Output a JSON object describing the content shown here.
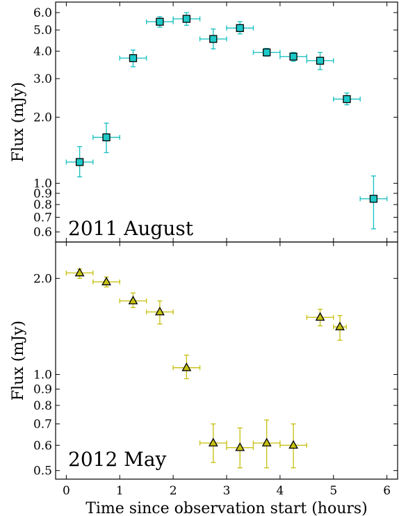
{
  "chart_data": [
    {
      "type": "scatter",
      "panel_label": "2011 August",
      "xlabel": "",
      "ylabel": "Flux (mJy)",
      "xlim": [
        -0.2,
        6.2
      ],
      "ylim": [
        0.54,
        6.7
      ],
      "yscale": "log",
      "grid": false,
      "marker": "square",
      "color": "#1ec8c8",
      "errorbar_color": "#20c2c2",
      "x_ticks": [
        0,
        1,
        2,
        3,
        4,
        5,
        6
      ],
      "y_ticks": [
        {
          "value": 0.6,
          "label": "0.6"
        },
        {
          "value": 0.7,
          "label": "0.7"
        },
        {
          "value": 0.8,
          "label": "0.8"
        },
        {
          "value": 0.9,
          "label": "0.9"
        },
        {
          "value": 1.0,
          "label": "1.0"
        },
        {
          "value": 2.0,
          "label": "2.0"
        },
        {
          "value": 3.0,
          "label": "3.0"
        },
        {
          "value": 4.0,
          "label": "4.0"
        },
        {
          "value": 5.0,
          "label": "5.0"
        },
        {
          "value": 6.0,
          "label": "6.0"
        }
      ],
      "points": [
        {
          "x": 0.25,
          "xerr": 0.25,
          "y": 1.25,
          "ylo": 1.07,
          "yhi": 1.47
        },
        {
          "x": 0.75,
          "xerr": 0.25,
          "y": 1.62,
          "ylo": 1.38,
          "yhi": 1.88
        },
        {
          "x": 1.25,
          "xerr": 0.25,
          "y": 3.72,
          "ylo": 3.4,
          "yhi": 4.05
        },
        {
          "x": 1.75,
          "xerr": 0.25,
          "y": 5.45,
          "ylo": 5.15,
          "yhi": 5.75
        },
        {
          "x": 2.25,
          "xerr": 0.25,
          "y": 5.62,
          "ylo": 5.25,
          "yhi": 6.0
        },
        {
          "x": 2.75,
          "xerr": 0.25,
          "y": 4.55,
          "ylo": 4.1,
          "yhi": 5.05
        },
        {
          "x": 3.25,
          "xerr": 0.25,
          "y": 5.1,
          "ylo": 4.8,
          "yhi": 5.45
        },
        {
          "x": 3.75,
          "xerr": 0.25,
          "y": 3.95,
          "ylo": 3.8,
          "yhi": 4.12
        },
        {
          "x": 4.25,
          "xerr": 0.25,
          "y": 3.78,
          "ylo": 3.6,
          "yhi": 3.95
        },
        {
          "x": 4.75,
          "xerr": 0.25,
          "y": 3.62,
          "ylo": 3.3,
          "yhi": 3.95
        },
        {
          "x": 5.25,
          "xerr": 0.25,
          "y": 2.42,
          "ylo": 2.28,
          "yhi": 2.58
        },
        {
          "x": 5.75,
          "xerr": 0.25,
          "y": 0.85,
          "ylo": 0.62,
          "yhi": 1.08
        }
      ]
    },
    {
      "type": "scatter",
      "panel_label": "2012 May",
      "xlabel": "Time since observation start (hours)",
      "ylabel": "Flux (mJy)",
      "xlim": [
        -0.2,
        6.2
      ],
      "ylim": [
        0.47,
        2.6
      ],
      "yscale": "log",
      "grid": false,
      "marker": "triangle",
      "color": "#c7c214",
      "errorbar_color": "#c9c31a",
      "x_ticks": [
        0,
        1,
        2,
        3,
        4,
        5,
        6
      ],
      "y_ticks": [
        {
          "value": 0.5,
          "label": "0.5"
        },
        {
          "value": 0.6,
          "label": "0.6"
        },
        {
          "value": 0.7,
          "label": "0.7"
        },
        {
          "value": 0.8,
          "label": "0.8"
        },
        {
          "value": 0.9,
          "label": "0.9"
        },
        {
          "value": 1.0,
          "label": "1.0"
        },
        {
          "value": 2.0,
          "label": "2.0"
        }
      ],
      "points": [
        {
          "x": 0.25,
          "xerr": 0.25,
          "y": 2.08,
          "ylo": 2.0,
          "yhi": 2.14
        },
        {
          "x": 0.75,
          "xerr": 0.25,
          "y": 1.95,
          "ylo": 1.88,
          "yhi": 2.02
        },
        {
          "x": 1.25,
          "xerr": 0.25,
          "y": 1.7,
          "ylo": 1.62,
          "yhi": 1.8
        },
        {
          "x": 1.75,
          "xerr": 0.25,
          "y": 1.57,
          "ylo": 1.44,
          "yhi": 1.7
        },
        {
          "x": 2.25,
          "xerr": 0.25,
          "y": 1.05,
          "ylo": 0.97,
          "yhi": 1.15
        },
        {
          "x": 2.75,
          "xerr": 0.25,
          "y": 0.61,
          "ylo": 0.53,
          "yhi": 0.7
        },
        {
          "x": 3.25,
          "xerr": 0.25,
          "y": 0.59,
          "ylo": 0.51,
          "yhi": 0.68
        },
        {
          "x": 3.75,
          "xerr": 0.25,
          "y": 0.61,
          "ylo": 0.51,
          "yhi": 0.72
        },
        {
          "x": 4.25,
          "xerr": 0.25,
          "y": 0.6,
          "ylo": 0.51,
          "yhi": 0.7
        },
        {
          "x": 4.75,
          "xerr": 0.25,
          "y": 1.51,
          "ylo": 1.42,
          "yhi": 1.6
        },
        {
          "x": 5.12,
          "xerr": 0.12,
          "y": 1.41,
          "ylo": 1.28,
          "yhi": 1.53
        }
      ]
    }
  ]
}
